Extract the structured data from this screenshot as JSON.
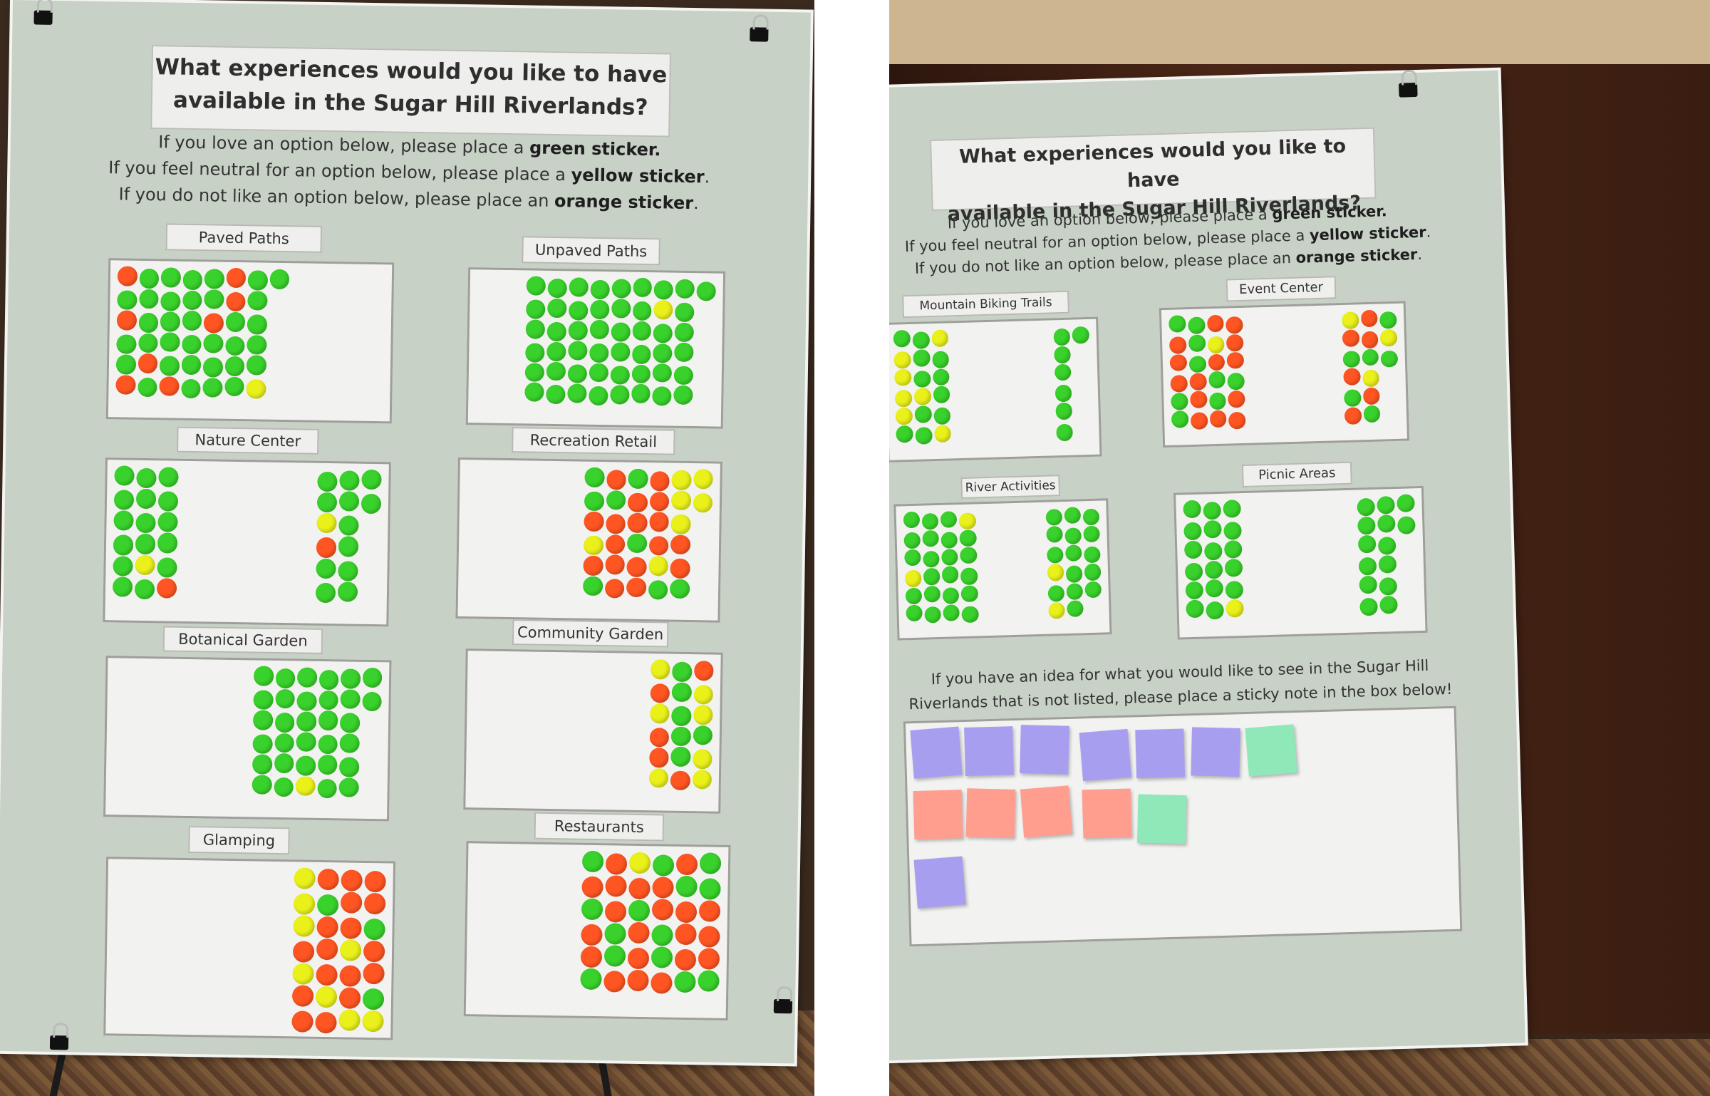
{
  "colors": {
    "green": "#39d12b",
    "yellow": "#e9f01a",
    "orange": "#ff5522",
    "poster": "#c7d1c5"
  },
  "left_poster": {
    "title_line1": "What experiences would you like to have",
    "title_line2": "available in the Sugar Hill Riverlands?",
    "instr_line1_pre": "If you love an option below, please place a ",
    "instr_line1_em": "green sticker.",
    "instr_line2_pre": "If you feel neutral for an option below, please place a ",
    "instr_line2_em": "yellow sticker",
    "instr_line2_post": ".",
    "instr_line3_pre": "If you do not like an option below, please place an ",
    "instr_line3_em": "orange sticker",
    "instr_line3_post": ".",
    "boards": [
      {
        "label": "Paved Paths",
        "green": 34,
        "yellow": 1,
        "orange": 8
      },
      {
        "label": "Unpaved Paths",
        "green": 48,
        "yellow": 1,
        "orange": 0
      },
      {
        "label": "Nature Center",
        "green": 28,
        "yellow": 2,
        "orange": 2
      },
      {
        "label": "Recreation Retail",
        "green": 8,
        "yellow": 7,
        "orange": 17
      },
      {
        "label": "Botanical Garden",
        "green": 31,
        "yellow": 1,
        "orange": 0
      },
      {
        "label": "Community Garden",
        "green": 6,
        "yellow": 7,
        "orange": 5
      },
      {
        "label": "Glamping",
        "green": 3,
        "yellow": 8,
        "orange": 17
      },
      {
        "label": "Restaurants",
        "green": 14,
        "yellow": 1,
        "orange": 21
      }
    ]
  },
  "right_poster": {
    "title_line1": "What experiences would you like to have",
    "title_line2": "available in the Sugar Hill Riverlands?",
    "instr_line1_pre": "If you love an option below, please place a ",
    "instr_line1_em": "green sticker.",
    "instr_line2_pre": "If you feel neutral for an option below, please place a ",
    "instr_line2_em": "yellow sticker",
    "instr_line2_post": ".",
    "instr_line3_pre": "If you do not like an option below, please place an ",
    "instr_line3_em": "orange sticker",
    "instr_line3_post": ".",
    "boards": [
      {
        "label": "Mountain Biking Trails",
        "green": 18,
        "yellow": 7,
        "orange": 0
      },
      {
        "label": "Event Center",
        "green": 15,
        "yellow": 4,
        "orange": 20
      },
      {
        "label": "River Activities",
        "green": 37,
        "yellow": 4,
        "orange": 0
      },
      {
        "label": "Picnic Areas",
        "green": 31,
        "yellow": 1,
        "orange": 0
      }
    ],
    "idea_line1": "If you have an idea for what you would like to see in the Sugar Hill",
    "idea_line2": "Riverlands that is not listed, please place a sticky note in the box below!",
    "sticky_notes": [
      {
        "color": "#a89ef0"
      },
      {
        "color": "#a89ef0"
      },
      {
        "color": "#a89ef0"
      },
      {
        "color": "#a89ef0"
      },
      {
        "color": "#a89ef0"
      },
      {
        "color": "#a89ef0"
      },
      {
        "color": "#8fe8b8"
      },
      {
        "color": "#ff9e8f"
      },
      {
        "color": "#ff9e8f"
      },
      {
        "color": "#ff9e8f"
      },
      {
        "color": "#ff9e8f"
      },
      {
        "color": "#8fe8b8"
      },
      {
        "color": "#a89ef0"
      }
    ]
  }
}
